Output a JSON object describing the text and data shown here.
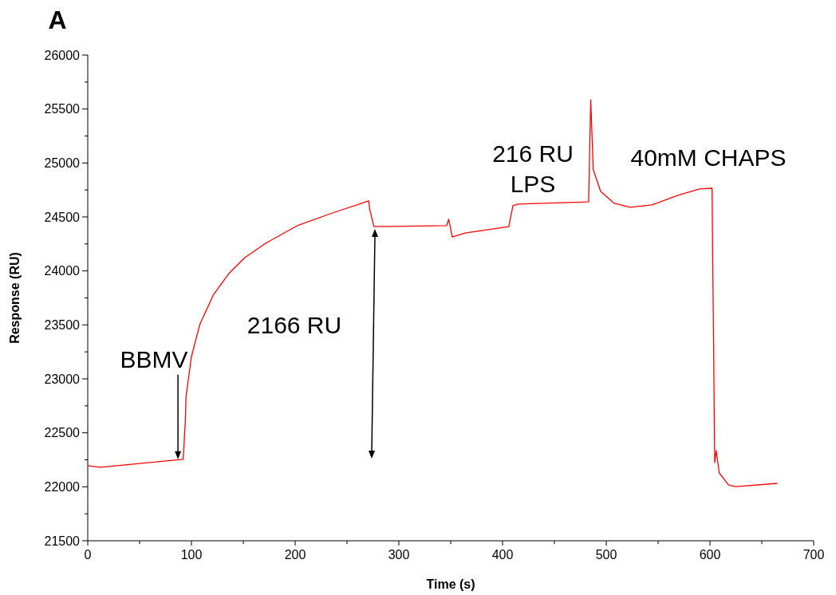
{
  "chart_data": {
    "type": "line",
    "title": "A",
    "xlabel": "Time (s)",
    "ylabel": "Response (RU)",
    "xlim": [
      0,
      700
    ],
    "ylim": [
      21500,
      26000
    ],
    "xticks": [
      0,
      {
        "value": 50,
        "label": null
      },
      100,
      {
        "value": 150,
        "label": null
      },
      200,
      {
        "value": 250,
        "label": null
      },
      300,
      {
        "value": 350,
        "label": null
      },
      400,
      {
        "value": 450,
        "label": null
      },
      500,
      {
        "value": 550,
        "label": null
      },
      600,
      {
        "value": 650,
        "label": null
      },
      700
    ],
    "yticks": [
      21500,
      {
        "value": 21750,
        "label": null
      },
      22000,
      {
        "value": 22250,
        "label": null
      },
      22500,
      {
        "value": 22750,
        "label": null
      },
      23000,
      {
        "value": 23250,
        "label": null
      },
      23500,
      {
        "value": 23750,
        "label": null
      },
      24000,
      {
        "value": 24250,
        "label": null
      },
      24500,
      {
        "value": 24750,
        "label": null
      },
      25000,
      {
        "value": 25250,
        "label": null
      },
      25500,
      {
        "value": 25750,
        "label": null
      },
      26000
    ],
    "series": [
      {
        "color": "#ff0000",
        "x": [
          0,
          12,
          92,
          94,
          94.8,
          100,
          108,
          121,
          136,
          151.5,
          171.5,
          202,
          236,
          271,
          272,
          276,
          346,
          348,
          350,
          351.5,
          364,
          406,
          410,
          415,
          483,
          485,
          487.5,
          494.6,
          507.7,
          523,
          544,
          569,
          590,
          602,
          604.6,
          606,
          609,
          618,
          625,
          665
        ],
        "values": [
          22195,
          22180,
          22255,
          22594,
          22837,
          23207,
          23502,
          23776,
          23975,
          24123,
          24256,
          24419,
          24537,
          24648,
          24566,
          24411,
          24419,
          24478,
          24389,
          24315,
          24352,
          24411,
          24604,
          24619,
          24640,
          25586,
          24936,
          24736,
          24626,
          24589,
          24611,
          24700,
          24759,
          24766,
          22224,
          22335,
          22128,
          22017,
          22002,
          22032
        ]
      }
    ],
    "annotations": [
      {
        "text": "BBMV",
        "x": 87,
        "y": 22255
      },
      "2166 RU",
      {
        "text": "216 RU\nLPS",
        "x": 410,
        "y": 24620
      },
      "40mM CHAPS"
    ],
    "grid": false,
    "marker": "none",
    "line_style": "solid"
  }
}
